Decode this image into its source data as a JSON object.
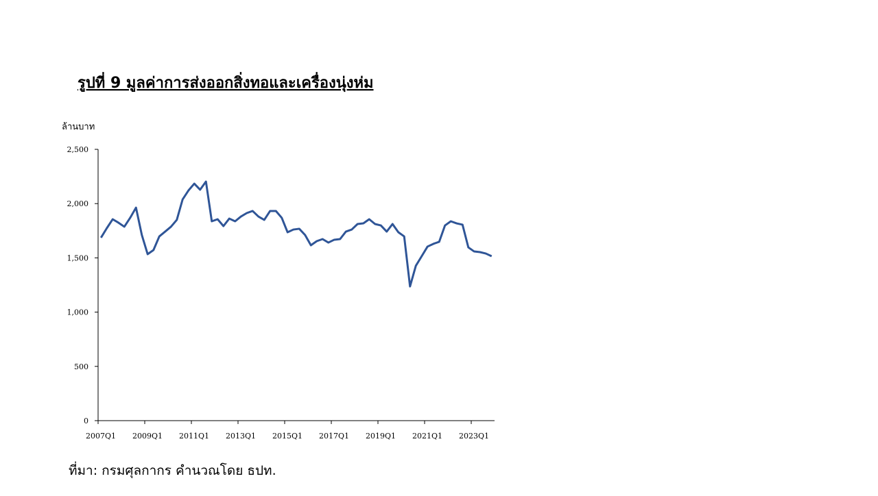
{
  "chart_data": {
    "type": "line",
    "title": "รูปที่ 9 มูลค่าการส่งออกสิ่งทอและเครื่องนุ่งห่ม",
    "y_axis_label": "ล้านบาท",
    "source": "ที่มา: กรมศุลกากร คำนวณโดย ธปท.",
    "categories": [
      "2007Q1",
      null,
      null,
      null,
      null,
      null,
      null,
      null,
      "2009Q1",
      null,
      null,
      null,
      null,
      null,
      null,
      null,
      "2011Q1",
      null,
      null,
      null,
      null,
      null,
      null,
      null,
      "2013Q1",
      null,
      null,
      null,
      null,
      null,
      null,
      null,
      "2015Q1",
      null,
      null,
      null,
      null,
      null,
      null,
      null,
      "2017Q1",
      null,
      null,
      null,
      null,
      null,
      null,
      null,
      "2019Q1",
      null,
      null,
      null,
      null,
      null,
      null,
      null,
      "2021Q1",
      null,
      null,
      null,
      null,
      null,
      null,
      null,
      "2023Q1",
      null,
      null,
      null
    ],
    "series": [
      {
        "color": "#2f5597",
        "values": [
          1686,
          1774,
          1856,
          1824,
          1787,
          1869,
          1963,
          1711,
          1534,
          1572,
          1698,
          1742,
          1787,
          1850,
          2039,
          2121,
          2184,
          2128,
          2203,
          1837,
          1856,
          1793,
          1862,
          1837,
          1881,
          1913,
          1932,
          1881,
          1850,
          1932,
          1932,
          1869,
          1736,
          1761,
          1768,
          1711,
          1616,
          1654,
          1673,
          1641,
          1667,
          1673,
          1742,
          1761,
          1812,
          1818,
          1856,
          1812,
          1799,
          1742,
          1812,
          1736,
          1698,
          1237,
          1427,
          1515,
          1604,
          1629,
          1648,
          1799,
          1837,
          1818,
          1806,
          1597,
          1559,
          1553,
          1540,
          1515
        ]
      }
    ],
    "ylim": [
      0,
      2500
    ],
    "yticks": [
      0,
      500,
      {
        "value": 1000,
        "label": "1,000"
      },
      {
        "value": 1500,
        "label": "1,500"
      },
      {
        "value": 2000,
        "label": "2,000"
      },
      {
        "value": 2500,
        "label": "2,500"
      }
    ],
    "grid": false
  }
}
